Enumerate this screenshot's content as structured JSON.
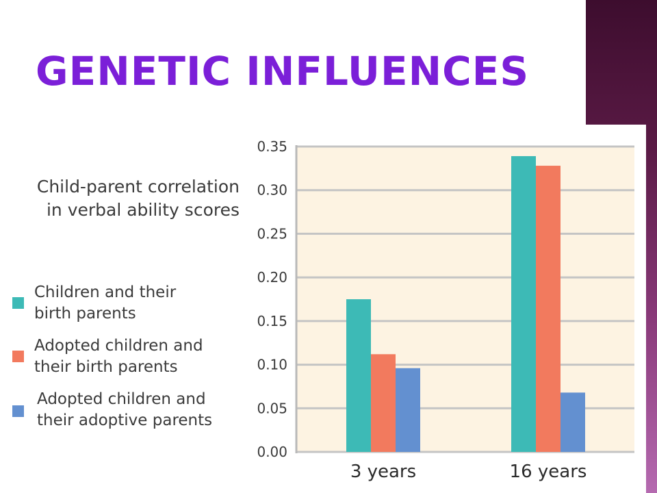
{
  "slide": {
    "title": "Genetic Influences"
  },
  "chart_data": {
    "type": "bar",
    "title_lines": [
      "Child-parent correlation",
      "in verbal ability scores"
    ],
    "categories": [
      "3 years",
      "16 years"
    ],
    "series": [
      {
        "name_lines": [
          "Children and their",
          "birth parents"
        ],
        "color": "#3dbab6",
        "values": [
          0.175,
          0.339
        ]
      },
      {
        "name_lines": [
          "Adopted children and",
          "their birth parents"
        ],
        "color": "#f27a5e",
        "values": [
          0.112,
          0.328
        ]
      },
      {
        "name_lines": [
          "Adopted children and",
          "their adoptive parents"
        ],
        "color": "#6390d0",
        "values": [
          0.096,
          0.068
        ]
      }
    ],
    "ylim": [
      0,
      0.35
    ],
    "yticks": [
      "0.00",
      "0.05",
      "0.10",
      "0.15",
      "0.20",
      "0.25",
      "0.30",
      "0.35"
    ],
    "grid": true,
    "plot_background": "#fdf3e2",
    "legend_position": "left"
  }
}
